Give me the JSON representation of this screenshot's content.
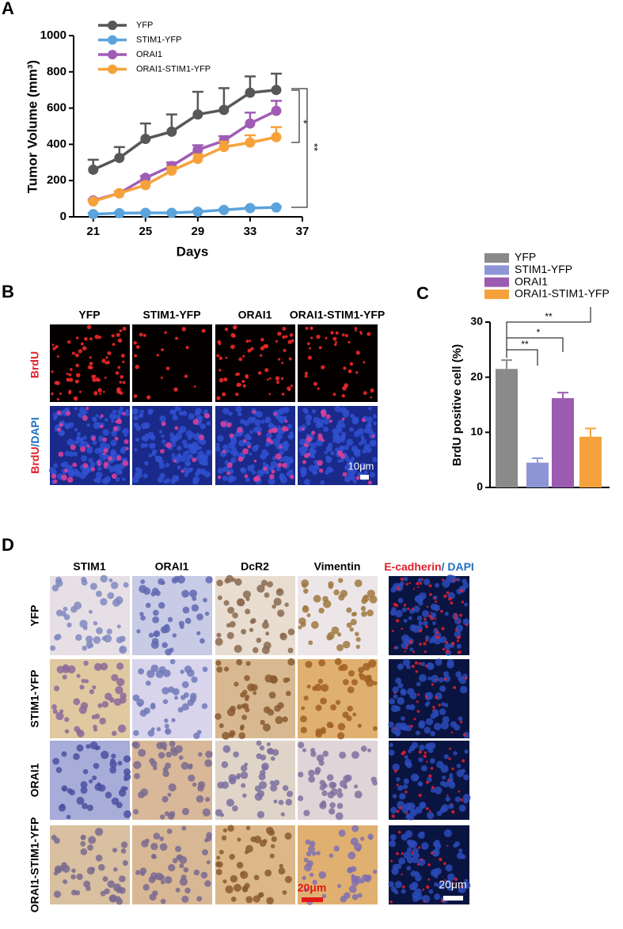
{
  "chart_data": [
    {
      "type": "line",
      "x_label": "Days",
      "y_label": "Tumor Volume (mm³)",
      "x": [
        21,
        23,
        25,
        27,
        29,
        31,
        33,
        35
      ],
      "xlim": [
        19.5,
        37
      ],
      "xticks": [
        21,
        25,
        29,
        33,
        37
      ],
      "ylim": [
        0,
        1000
      ],
      "yticks": [
        0,
        200,
        400,
        600,
        800,
        1000
      ],
      "series": [
        {
          "name": "YFP",
          "color": "#575757",
          "values": [
            260,
            325,
            430,
            470,
            565,
            590,
            685,
            700
          ],
          "errors": [
            55,
            60,
            85,
            95,
            125,
            120,
            90,
            90
          ]
        },
        {
          "name": "STIM1-YFP",
          "color": "#5ba3dc",
          "values": [
            15,
            20,
            22,
            22,
            28,
            38,
            48,
            52
          ],
          "errors": [
            5,
            5,
            5,
            5,
            5,
            5,
            5,
            5
          ]
        },
        {
          "name": "ORAI1",
          "color": "#a05cb5",
          "values": [
            90,
            130,
            215,
            280,
            370,
            420,
            515,
            585
          ],
          "errors": [
            5,
            10,
            10,
            20,
            25,
            25,
            60,
            55
          ]
        },
        {
          "name": "ORAI1-STIM1-YFP",
          "color": "#f6a23a",
          "values": [
            85,
            130,
            175,
            255,
            320,
            385,
            410,
            440
          ],
          "errors": [
            5,
            10,
            15,
            20,
            25,
            30,
            40,
            55
          ]
        }
      ],
      "annotations": [
        "*",
        "**"
      ]
    },
    {
      "type": "bar",
      "y_label": "BrdU positive cell (%)",
      "categories": [
        "YFP",
        "STIM1-YFP",
        "ORAI1",
        "ORAI1-STIM1-YFP"
      ],
      "values": [
        21.5,
        4.5,
        16.2,
        9.2
      ],
      "errors": [
        1.6,
        0.8,
        1.0,
        1.5
      ],
      "colors": [
        "#8a8a8a",
        "#8e95d6",
        "#9a5bb0",
        "#f6a23c"
      ],
      "ylim": [
        0,
        30
      ],
      "yticks": [
        0,
        10,
        20,
        30
      ],
      "annotations": [
        "**",
        "*",
        "**"
      ]
    }
  ],
  "panel_labels": [
    "A",
    "B",
    "C",
    "D"
  ],
  "panel_b": {
    "columns": [
      "YFP",
      "STIM1-YFP",
      "ORAI1",
      "ORAI1-STIM1-YFP"
    ],
    "row_brdu": "BrdU",
    "row_merge_red": "BrdU",
    "row_merge_blue": "/DAPI",
    "scale_bar": "10μm"
  },
  "panel_d": {
    "columns": [
      "STIM1",
      "ORAI1",
      "DcR2",
      "Vimentin"
    ],
    "if_red": "E-cadherin",
    "if_blue": "/ DAPI",
    "rows": [
      "YFP",
      "STIM1-YFP",
      "ORAI1",
      "ORAI1-STIM1-YFP"
    ],
    "scale_bars": [
      "20μm",
      "20μm"
    ]
  }
}
